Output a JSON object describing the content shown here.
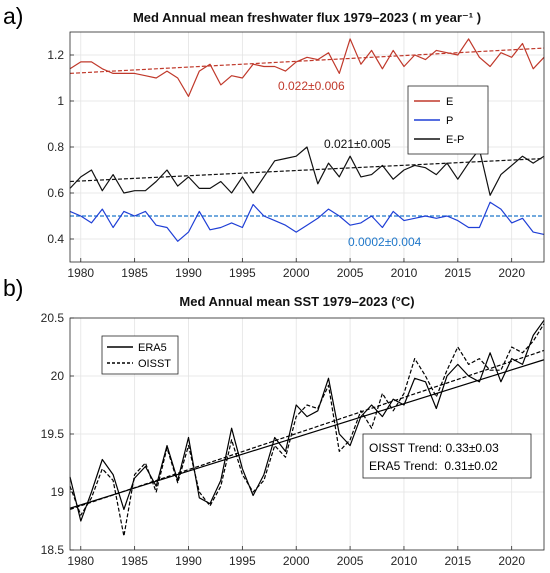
{
  "chart_data": [
    {
      "panel_label": "a)",
      "type": "line",
      "title": "Med Annual mean freshwater flux 1979–2023 ( m year⁻¹ )",
      "xlabel": "",
      "ylabel": "",
      "xlim": [
        1979,
        2023
      ],
      "ylim": [
        0.3,
        1.3
      ],
      "xticks": [
        1980,
        1985,
        1990,
        1995,
        2000,
        2005,
        2010,
        2015,
        2020
      ],
      "yticks": [
        0.4,
        0.6,
        0.8,
        1.0,
        1.2
      ],
      "ytick_labels": [
        "0.4",
        "0.6",
        "0.8",
        "1",
        "1.2"
      ],
      "grid": true,
      "legend": "top-right",
      "x": [
        1979,
        1980,
        1981,
        1982,
        1983,
        1984,
        1985,
        1986,
        1987,
        1988,
        1989,
        1990,
        1991,
        1992,
        1993,
        1994,
        1995,
        1996,
        1997,
        1998,
        1999,
        2000,
        2001,
        2002,
        2003,
        2004,
        2005,
        2006,
        2007,
        2008,
        2009,
        2010,
        2011,
        2012,
        2013,
        2014,
        2015,
        2016,
        2017,
        2018,
        2019,
        2020,
        2021,
        2022,
        2023
      ],
      "series": [
        {
          "name": "E",
          "color": "#c0392b",
          "values": [
            1.14,
            1.17,
            1.17,
            1.14,
            1.12,
            1.12,
            1.12,
            1.11,
            1.1,
            1.13,
            1.1,
            1.02,
            1.13,
            1.16,
            1.07,
            1.11,
            1.1,
            1.16,
            1.15,
            1.15,
            1.13,
            1.17,
            1.19,
            1.18,
            1.21,
            1.12,
            1.27,
            1.16,
            1.22,
            1.14,
            1.22,
            1.15,
            1.2,
            1.18,
            1.22,
            1.21,
            1.2,
            1.27,
            1.19,
            1.15,
            1.21,
            1.19,
            1.25,
            1.14,
            1.19
          ],
          "trend_start": 1.12,
          "trend_end": 1.23,
          "trend_label": "0.022±0.006"
        },
        {
          "name": "P",
          "color": "#1f3fd6",
          "values": [
            0.52,
            0.5,
            0.47,
            0.53,
            0.45,
            0.52,
            0.5,
            0.52,
            0.46,
            0.45,
            0.39,
            0.43,
            0.52,
            0.44,
            0.45,
            0.47,
            0.45,
            0.55,
            0.5,
            0.48,
            0.46,
            0.43,
            0.46,
            0.49,
            0.53,
            0.5,
            0.46,
            0.47,
            0.5,
            0.45,
            0.52,
            0.48,
            0.49,
            0.5,
            0.49,
            0.5,
            0.48,
            0.45,
            0.45,
            0.56,
            0.53,
            0.47,
            0.49,
            0.43,
            0.42
          ],
          "trend_start": 0.5,
          "trend_end": 0.5,
          "trend_label": "0.0002±0.004"
        },
        {
          "name": "E-P",
          "color": "#111111",
          "values": [
            0.62,
            0.67,
            0.7,
            0.61,
            0.68,
            0.6,
            0.61,
            0.61,
            0.65,
            0.7,
            0.63,
            0.67,
            0.62,
            0.62,
            0.65,
            0.6,
            0.67,
            0.6,
            0.67,
            0.74,
            0.75,
            0.76,
            0.8,
            0.64,
            0.73,
            0.67,
            0.76,
            0.67,
            0.68,
            0.72,
            0.66,
            0.7,
            0.72,
            0.71,
            0.68,
            0.73,
            0.66,
            0.73,
            0.79,
            0.59,
            0.68,
            0.72,
            0.76,
            0.73,
            0.76
          ],
          "trend_start": 0.65,
          "trend_end": 0.75,
          "trend_label": "0.021±0.005"
        }
      ]
    },
    {
      "panel_label": "b)",
      "type": "line",
      "title": "Med Annual mean SST 1979–2023 (°C)",
      "xlabel": "",
      "ylabel": "",
      "xlim": [
        1979,
        2023
      ],
      "ylim": [
        18.5,
        20.5
      ],
      "xticks": [
        1980,
        1985,
        1990,
        1995,
        2000,
        2005,
        2010,
        2015,
        2020
      ],
      "yticks": [
        18.5,
        19,
        19.5,
        20,
        20.5
      ],
      "ytick_labels": [
        "18.5",
        "19",
        "19.5",
        "20",
        "20.5"
      ],
      "grid": true,
      "legend": "top-left",
      "x": [
        1979,
        1980,
        1981,
        1982,
        1983,
        1984,
        1985,
        1986,
        1987,
        1988,
        1989,
        1990,
        1991,
        1992,
        1993,
        1994,
        1995,
        1996,
        1997,
        1998,
        1999,
        2000,
        2001,
        2002,
        2003,
        2004,
        2005,
        2006,
        2007,
        2008,
        2009,
        2010,
        2011,
        2012,
        2013,
        2014,
        2015,
        2016,
        2017,
        2018,
        2019,
        2020,
        2021,
        2022,
        2023
      ],
      "series": [
        {
          "name": "ERA5",
          "color": "#000000",
          "dash": "solid",
          "values": [
            19.13,
            18.75,
            19.0,
            19.28,
            19.15,
            18.85,
            19.12,
            19.22,
            19.05,
            19.4,
            19.1,
            19.47,
            18.95,
            18.9,
            19.1,
            19.55,
            19.2,
            18.97,
            19.15,
            19.47,
            19.35,
            19.75,
            19.65,
            19.7,
            19.98,
            19.5,
            19.4,
            19.65,
            19.75,
            19.65,
            19.8,
            19.75,
            19.98,
            19.95,
            19.72,
            20.0,
            20.1,
            20.0,
            19.95,
            20.2,
            19.95,
            20.15,
            20.1,
            20.35,
            20.48
          ],
          "trend_start": 18.86,
          "trend_end": 20.14
        },
        {
          "name": "OISST",
          "color": "#000000",
          "dash": "dashed",
          "values": [
            19.05,
            18.8,
            18.95,
            19.2,
            19.1,
            18.62,
            19.15,
            19.25,
            19.0,
            19.38,
            19.08,
            19.4,
            19.0,
            18.88,
            19.05,
            19.45,
            19.15,
            19.0,
            19.1,
            19.4,
            19.3,
            19.65,
            19.75,
            19.72,
            19.92,
            19.35,
            19.45,
            19.7,
            19.55,
            19.85,
            19.7,
            19.85,
            20.15,
            20.0,
            19.82,
            20.05,
            20.25,
            20.1,
            20.15,
            20.05,
            20.05,
            20.25,
            20.2,
            20.3,
            20.45
          ],
          "trend_start": 18.85,
          "trend_end": 20.22
        }
      ],
      "annotations": [
        "OISST Trend: 0.33±0.03",
        "ERA5 Trend:  0.31±0.02"
      ]
    }
  ]
}
